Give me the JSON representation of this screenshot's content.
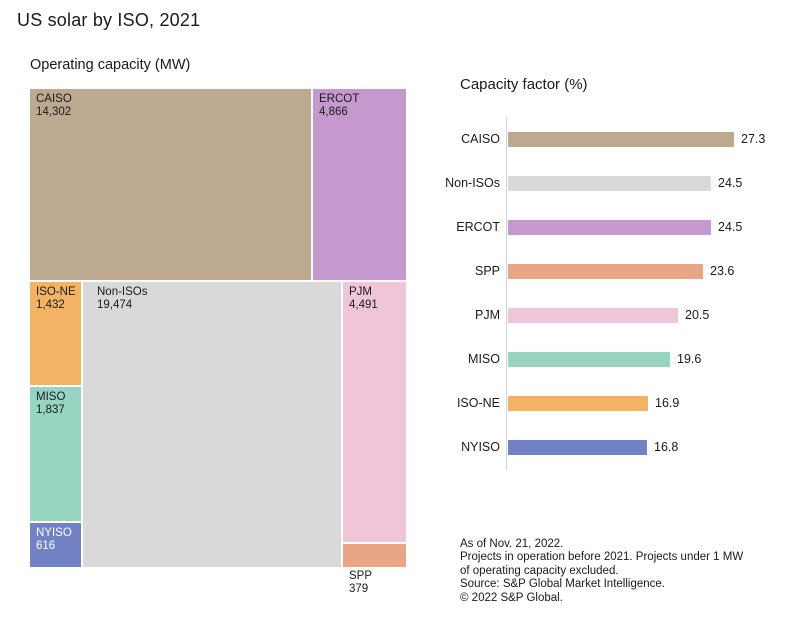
{
  "title": "US solar by ISO, 2021",
  "chart_data": [
    {
      "type": "treemap",
      "title": "Operating capacity (MW)",
      "unit": "MW",
      "cells": [
        {
          "label": "CAISO",
          "value": 14302,
          "display": "14,302",
          "color": "#bda990"
        },
        {
          "label": "ERCOT",
          "value": 4866,
          "display": "4,866",
          "color": "#c698d0"
        },
        {
          "label": "ISO-NE",
          "value": 1432,
          "display": "1,432",
          "color": "#f4b364"
        },
        {
          "label": "MISO",
          "value": 1837,
          "display": "1,837",
          "color": "#97d5c2"
        },
        {
          "label": "NYISO",
          "value": 616,
          "display": "616",
          "color": "#7081c6",
          "text_color": "#ffffff"
        },
        {
          "label": "Non-ISOs",
          "value": 19474,
          "display": "19,474",
          "color": "#d9d9d9"
        },
        {
          "label": "PJM",
          "value": 4491,
          "display": "4,491",
          "color": "#f0c5d8"
        },
        {
          "label": "SPP",
          "value": 379,
          "display": "379",
          "color": "#e8a687"
        }
      ]
    },
    {
      "type": "bar",
      "title": "Capacity factor (%)",
      "orientation": "horizontal",
      "xlim": [
        0,
        30
      ],
      "grid": false,
      "bars": [
        {
          "label": "CAISO",
          "value": 27.3,
          "color": "#bda990"
        },
        {
          "label": "Non-ISOs",
          "value": 24.5,
          "color": "#d9d9d9"
        },
        {
          "label": "ERCOT",
          "value": 24.5,
          "color": "#c698d0"
        },
        {
          "label": "SPP",
          "value": 23.6,
          "color": "#e8a687"
        },
        {
          "label": "PJM",
          "value": 20.5,
          "color": "#f0c5d8"
        },
        {
          "label": "MISO",
          "value": 19.6,
          "color": "#97d5c2"
        },
        {
          "label": "ISO-NE",
          "value": 16.9,
          "color": "#f4b364"
        },
        {
          "label": "NYISO",
          "value": 16.8,
          "color": "#7081c6"
        }
      ]
    }
  ],
  "footnotes": [
    "As of Nov. 21, 2022.",
    "Projects in operation before 2021. Projects under 1 MW",
    "of operating capacity excluded.",
    "Source: S&P Global Market Intelligence.",
    "© 2022 S&P Global."
  ]
}
